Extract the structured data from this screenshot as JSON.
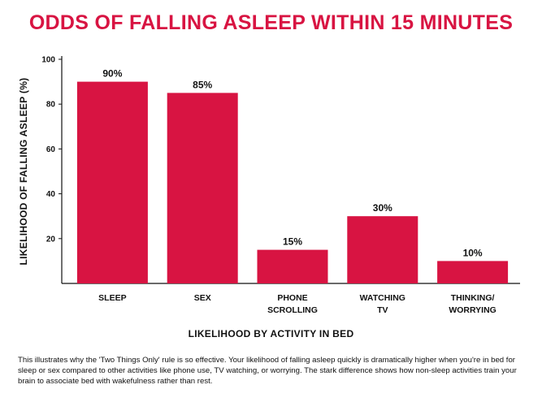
{
  "colors": {
    "bar": "#d81442",
    "title": "#d81442",
    "axis": "#111111"
  },
  "chart_data": {
    "type": "bar",
    "title": "ODDS OF FALLING ASLEEP WITHIN 15 MINUTES",
    "xlabel": "LIKELIHOOD BY ACTIVITY IN BED",
    "ylabel": "LIKELIHOOD OF FALLING ASLEEP (%)",
    "categories": [
      [
        "SLEEP"
      ],
      [
        "SEX"
      ],
      [
        "PHONE",
        "SCROLLING"
      ],
      [
        "WATCHING",
        "TV"
      ],
      [
        "THINKING/",
        "WORRYING"
      ]
    ],
    "values": [
      90,
      85,
      15,
      30,
      10
    ],
    "data_labels": [
      "90%",
      "85%",
      "15%",
      "30%",
      "10%"
    ],
    "ylim": [
      0,
      100
    ],
    "yticks": [
      20,
      40,
      60,
      80,
      100
    ],
    "grid": false
  },
  "caption": "This illustrates why the 'Two Things Only' rule is so effective. Your likelihood of falling asleep quickly is dramatically higher when you're in bed for sleep or sex compared to other activities like phone use, TV watching, or worrying. The stark difference shows how non-sleep activities train your brain to associate bed with wakefulness rather than rest."
}
